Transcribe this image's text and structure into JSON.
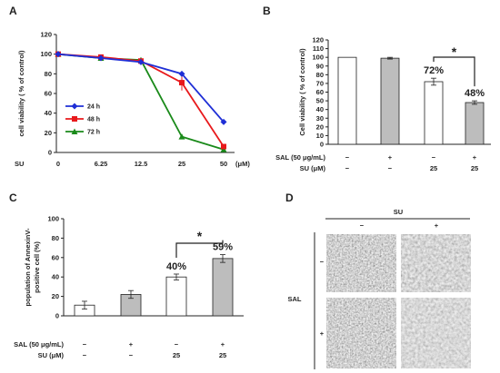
{
  "panels": {
    "A": "A",
    "B": "B",
    "C": "C",
    "D": "D"
  },
  "chart_data": [
    {
      "id": "A",
      "type": "line",
      "categories": [
        "0",
        "6.25",
        "12.5",
        "25",
        "50"
      ],
      "x_prefix": "SU",
      "x_unit": "(μM)",
      "ylabel": "cell viability ( % of control)",
      "ylim": [
        0,
        120
      ],
      "yticks": [
        0,
        20,
        40,
        60,
        80,
        100,
        120
      ],
      "legend_position": "left",
      "series": [
        {
          "name": "24 h",
          "color": "#1f2fd6",
          "marker": "diamond",
          "values": [
            100,
            96,
            92,
            80,
            31
          ]
        },
        {
          "name": "48 h",
          "color": "#e8191c",
          "marker": "square",
          "values": [
            100,
            97,
            93,
            71,
            6
          ],
          "errors": [
            0,
            0,
            0,
            8,
            0
          ]
        },
        {
          "name": "72 h",
          "color": "#1a8a1a",
          "marker": "triangle",
          "values": [
            100,
            96,
            94,
            16,
            3
          ],
          "errors": [
            0,
            0,
            0,
            2,
            0
          ]
        }
      ]
    },
    {
      "id": "B",
      "type": "bar",
      "ylabel": "Cell viability ( % of control)",
      "ylim": [
        0,
        120
      ],
      "yticks": [
        0,
        10,
        20,
        30,
        40,
        50,
        60,
        70,
        80,
        90,
        100,
        110,
        120
      ],
      "values": [
        100,
        99,
        72,
        48
      ],
      "errors": [
        0,
        1,
        4,
        2
      ],
      "fills": [
        "#ffffff",
        "#bdbdbd",
        "#ffffff",
        "#bdbdbd"
      ],
      "value_labels": [
        "",
        "",
        "72%",
        "48%"
      ],
      "significance": "*",
      "row_labels": [
        "SAL (50 μg/mL)",
        "SU (μM)"
      ],
      "rows": [
        [
          "−",
          "+",
          "−",
          "+"
        ],
        [
          "−",
          "−",
          "25",
          "25"
        ]
      ]
    },
    {
      "id": "C",
      "type": "bar",
      "ylabel": "population of AnnexinV-positive cell (%)",
      "ylim": [
        0,
        100
      ],
      "yticks": [
        0,
        20,
        40,
        60,
        80,
        100
      ],
      "values": [
        11,
        22,
        40,
        59
      ],
      "errors": [
        4,
        4,
        3,
        4
      ],
      "fills": [
        "#ffffff",
        "#bdbdbd",
        "#ffffff",
        "#bdbdbd"
      ],
      "value_labels": [
        "",
        "",
        "40%",
        "59%"
      ],
      "significance": "*",
      "row_labels": [
        "SAL (50 μg/mL)",
        "SU (μM)"
      ],
      "rows": [
        [
          "−",
          "+",
          "−",
          "+"
        ],
        [
          "−",
          "−",
          "25",
          "25"
        ]
      ]
    }
  ],
  "panel_d": {
    "top_label": "SU",
    "col_signs": [
      "−",
      "+"
    ],
    "side_label": "SAL",
    "row_signs": [
      "−",
      "+"
    ]
  }
}
